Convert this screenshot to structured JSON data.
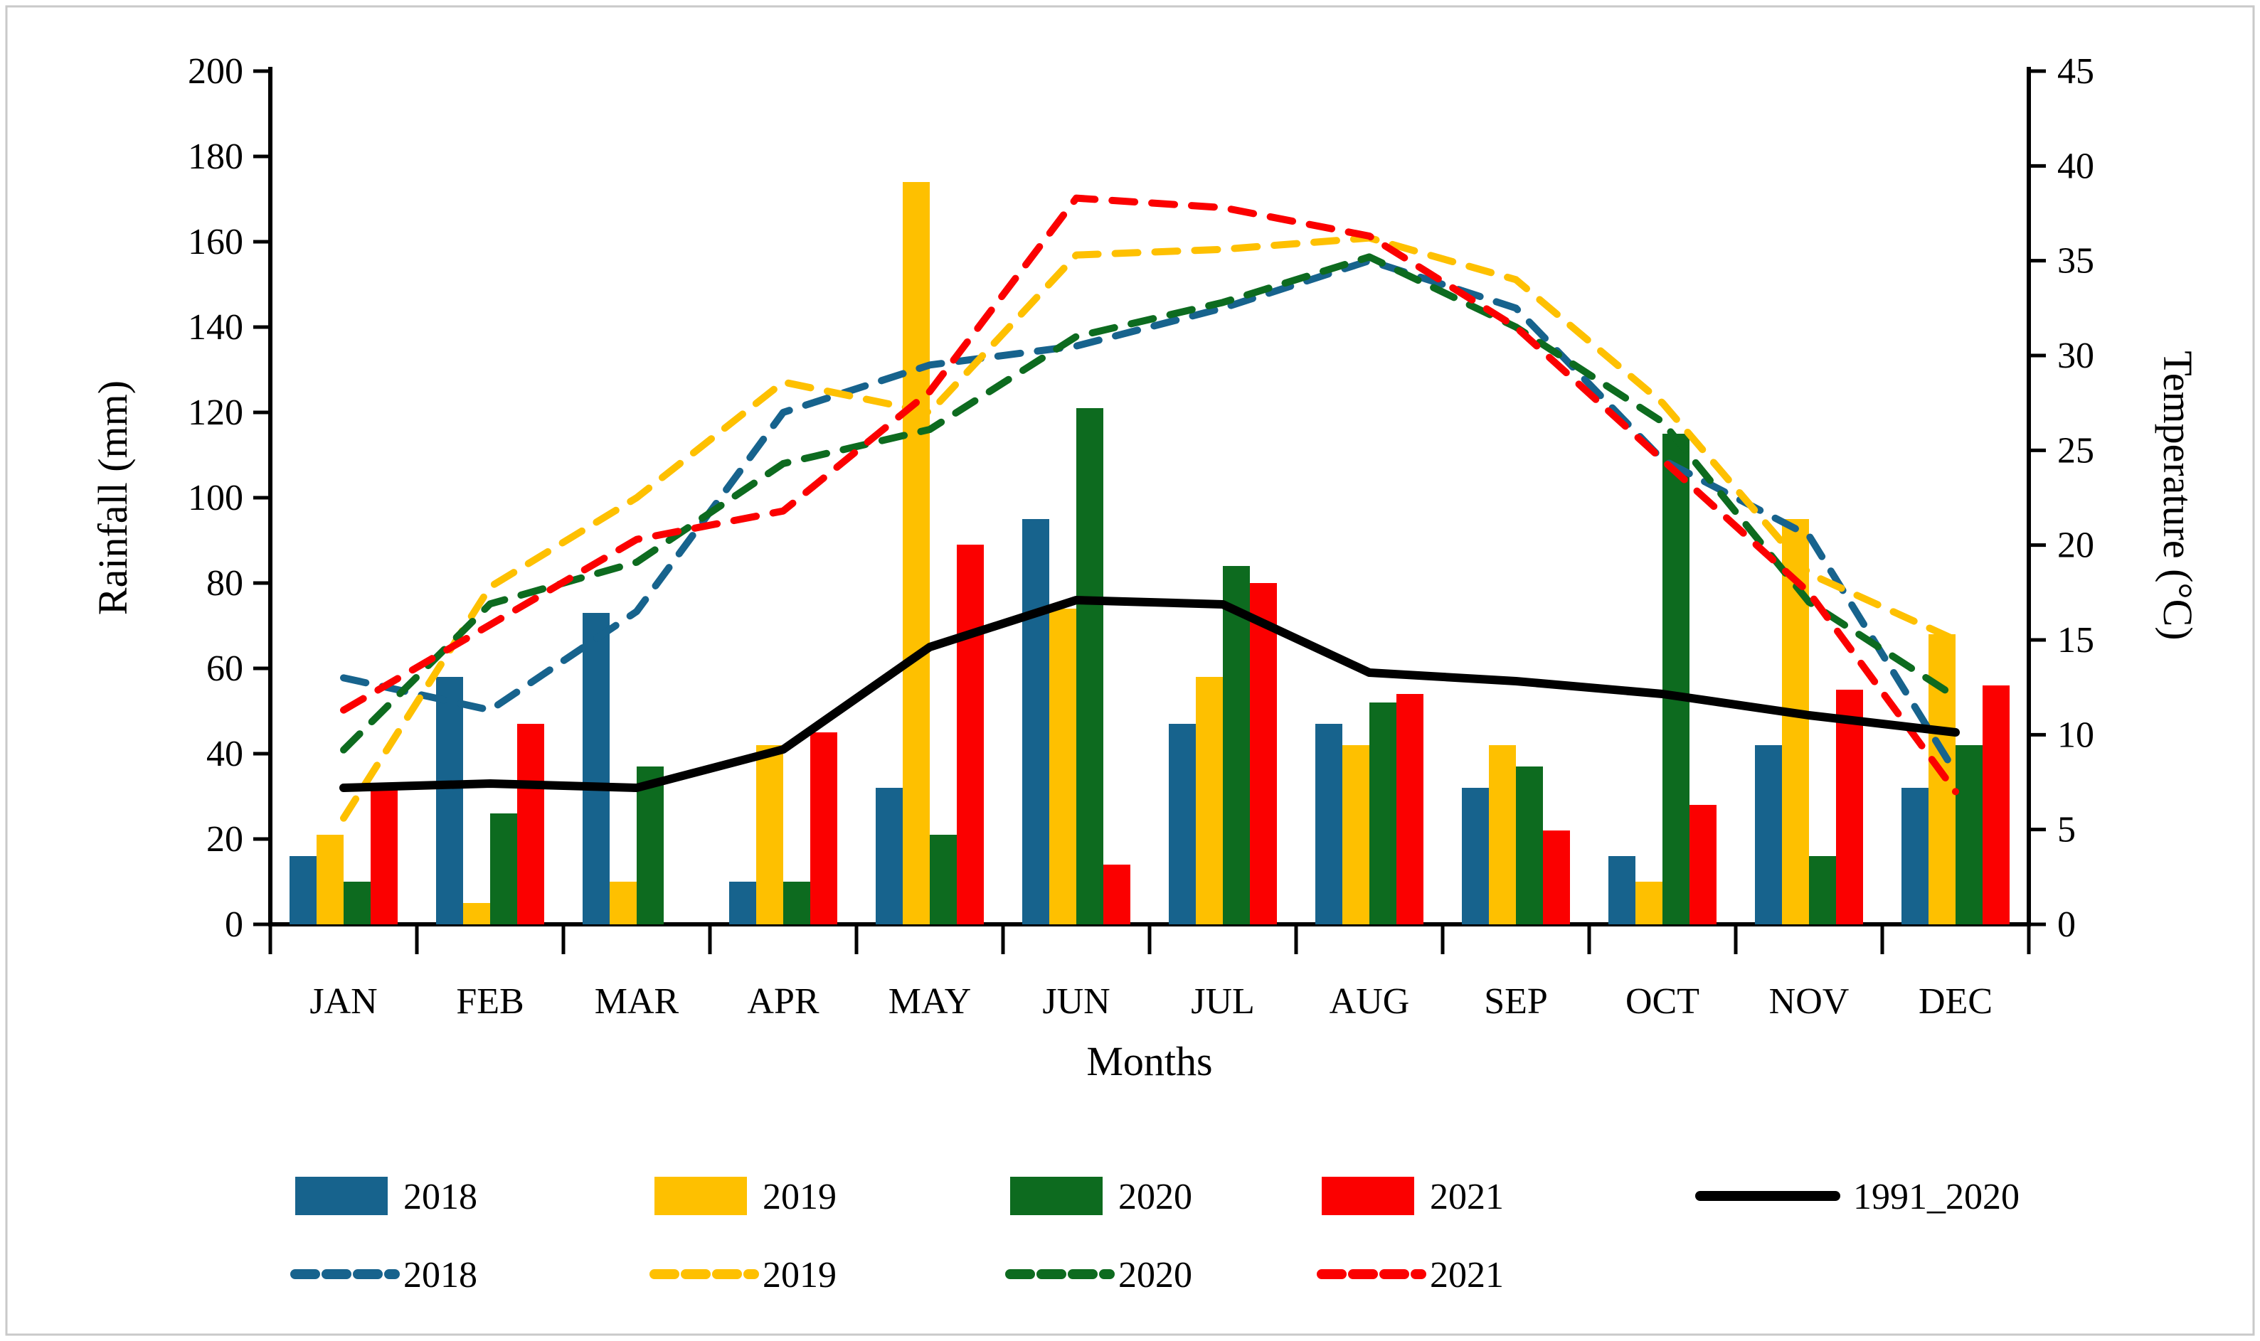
{
  "chart_data": {
    "type": "combo-bar-line",
    "categories": [
      "JAN",
      "FEB",
      "MAR",
      "APR",
      "MAY",
      "JUN",
      "JUL",
      "AUG",
      "SEP",
      "OCT",
      "NOV",
      "DEC"
    ],
    "x_label": "Months",
    "y_left": {
      "label": "Rainfall (mm)",
      "min": 0,
      "max": 200,
      "step": 20,
      "ticks": [
        "0",
        "20",
        "40",
        "60",
        "80",
        "100",
        "120",
        "140",
        "160",
        "180",
        "200"
      ]
    },
    "y_right": {
      "label": "Temperature (°C)",
      "min": 0,
      "max": 45,
      "step": 5,
      "ticks": [
        "0",
        "5",
        "10",
        "15",
        "20",
        "25",
        "30",
        "35",
        "40",
        "45"
      ]
    },
    "grid": false,
    "bar_series": [
      {
        "name": "2018",
        "color": "#17638d",
        "axis": "left",
        "values": [
          16,
          58,
          73,
          10,
          32,
          95,
          47,
          47,
          32,
          16,
          42,
          32
        ]
      },
      {
        "name": "2019",
        "color": "#fec000",
        "axis": "left",
        "values": [
          21,
          5,
          10,
          42,
          174,
          74,
          58,
          42,
          42,
          10,
          95,
          68
        ]
      },
      {
        "name": "2020",
        "color": "#0d6b1f",
        "axis": "left",
        "values": [
          10,
          26,
          37,
          10,
          21,
          121,
          84,
          52,
          37,
          115,
          16,
          42
        ]
      },
      {
        "name": "2021",
        "color": "#fb0000",
        "axis": "left",
        "values": [
          33,
          47,
          0,
          45,
          89,
          14,
          80,
          54,
          22,
          28,
          55,
          56
        ]
      }
    ],
    "line_series": [
      {
        "name": "1991_2020",
        "color": "#000000",
        "style": "solid",
        "axis": "left",
        "values": [
          32,
          33,
          32,
          41,
          65,
          76,
          75,
          59,
          57,
          54,
          49,
          45
        ]
      },
      {
        "name": "2018",
        "color": "#17638d",
        "style": "dashed",
        "axis": "right",
        "values": [
          13.0,
          11.3,
          16.5,
          27.0,
          29.5,
          30.5,
          32.5,
          35.0,
          32.5,
          24.5,
          20.5,
          8.0
        ]
      },
      {
        "name": "2019",
        "color": "#fec000",
        "style": "dashed",
        "axis": "right",
        "values": [
          5.6,
          17.8,
          22.5,
          28.6,
          27.0,
          35.3,
          35.6,
          36.2,
          34.0,
          27.5,
          18.5,
          15.0
        ]
      },
      {
        "name": "2020",
        "color": "#0d6b1f",
        "style": "dashed",
        "axis": "right",
        "values": [
          9.2,
          16.9,
          19.1,
          24.3,
          26.1,
          31.0,
          32.8,
          35.2,
          31.5,
          26.5,
          17.0,
          12.0
        ]
      },
      {
        "name": "2021",
        "color": "#fb0000",
        "style": "dashed",
        "axis": "right",
        "values": [
          11.3,
          15.8,
          20.3,
          21.8,
          28.1,
          38.3,
          37.8,
          36.3,
          31.5,
          24.5,
          17.5,
          7.0
        ]
      }
    ],
    "legend": {
      "position": "bottom",
      "row1": [
        {
          "swatch": "rect",
          "color": "#17638d",
          "label": "2018"
        },
        {
          "swatch": "rect",
          "color": "#fec000",
          "label": "2019"
        },
        {
          "swatch": "rect",
          "color": "#0d6b1f",
          "label": "2020"
        },
        {
          "swatch": "rect",
          "color": "#fb0000",
          "label": "2021"
        },
        {
          "swatch": "line-solid",
          "color": "#000000",
          "label": "1991_2020"
        }
      ],
      "row2": [
        {
          "swatch": "line-dashed",
          "color": "#17638d",
          "label": "2018"
        },
        {
          "swatch": "line-dashed",
          "color": "#fec000",
          "label": "2019"
        },
        {
          "swatch": "line-dashed",
          "color": "#0d6b1f",
          "label": "2020"
        },
        {
          "swatch": "line-dashed",
          "color": "#fb0000",
          "label": "2021"
        }
      ]
    },
    "frame_border_color": "#c9c9c9"
  }
}
